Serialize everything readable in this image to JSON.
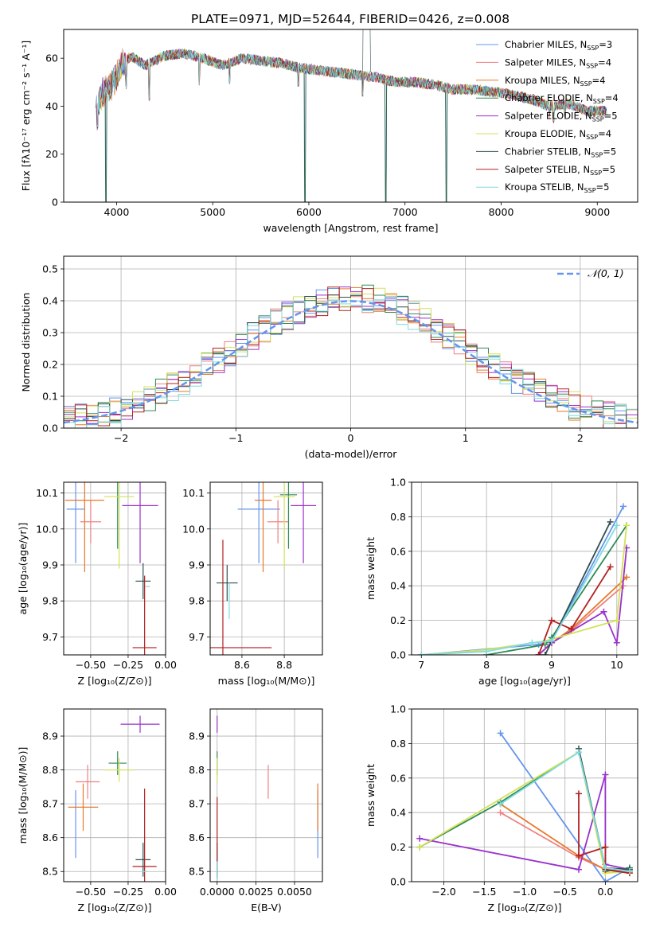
{
  "figure": {
    "title": "PLATE=0971, MJD=52644, FIBERID=0426, z=0.008"
  },
  "legend_entries": [
    {
      "base": "Chabrier MILES, N",
      "sub": "SSP",
      "tail": "=3",
      "color": "#6495ed"
    },
    {
      "base": "Salpeter MILES, N",
      "sub": "SSP",
      "tail": "=4",
      "color": "#f08080"
    },
    {
      "base": "Kroupa MILES, N",
      "sub": "SSP",
      "tail": "=4",
      "color": "#e8782a"
    },
    {
      "base": "Chabrier ELODIE, N",
      "sub": "SSP",
      "tail": "=4",
      "color": "#2e8b57"
    },
    {
      "base": "Salpeter ELODIE, N",
      "sub": "SSP",
      "tail": "=5",
      "color": "#9932cc"
    },
    {
      "base": "Kroupa ELODIE, N",
      "sub": "SSP",
      "tail": "=4",
      "color": "#d4e157"
    },
    {
      "base": "Chabrier STELIB, N",
      "sub": "SSP",
      "tail": "=5",
      "color": "#2f4f4f"
    },
    {
      "base": "Salpeter STELIB, N",
      "sub": "SSP",
      "tail": "=5",
      "color": "#b22222"
    },
    {
      "base": "Kroupa STELIB, N",
      "sub": "SSP",
      "tail": "=5",
      "color": "#7fdbe0"
    }
  ],
  "chart_data": [
    {
      "id": "spectrum",
      "type": "line",
      "xlabel": "wavelength [Angstrom, rest frame]",
      "ylabel": "Flux [fλ10⁻¹⁷ erg cm⁻² s⁻¹ A⁻¹]",
      "xlim": [
        3450,
        9420
      ],
      "ylim": [
        0,
        72
      ],
      "xticks": [
        4000,
        5000,
        6000,
        7000,
        8000,
        9000
      ],
      "yticks": [
        0,
        20,
        40,
        60
      ],
      "grid": false,
      "legend_placement": "upper right",
      "continuum": {
        "x": [
          3780,
          3850,
          3950,
          4050,
          4150,
          4300,
          4500,
          4700,
          4900,
          5100,
          5300,
          5500,
          5700,
          5900,
          6100,
          6300,
          6500,
          6700,
          6900,
          7100,
          7300,
          7500,
          7700,
          7900,
          8100,
          8300,
          8500,
          8700,
          8900,
          9100
        ],
        "y": [
          40,
          45,
          49,
          57,
          61,
          57,
          61,
          62,
          60,
          57,
          60,
          59,
          58,
          56,
          55,
          54,
          53,
          52,
          50,
          50,
          49,
          47,
          47,
          46,
          45,
          43,
          40,
          41,
          38,
          38
        ]
      },
      "dips": [
        [
          3800,
          30
        ],
        [
          3890,
          0
        ],
        [
          4100,
          47
        ],
        [
          4340,
          42
        ],
        [
          4860,
          48
        ],
        [
          5175,
          49
        ],
        [
          5890,
          48
        ],
        [
          5960,
          0
        ],
        [
          6560,
          44
        ],
        [
          6800,
          0
        ],
        [
          7430,
          0
        ],
        [
          8500,
          35
        ],
        [
          8545,
          33
        ],
        [
          8665,
          35
        ]
      ],
      "spike": {
        "x": 6600,
        "y": 72
      }
    },
    {
      "id": "residual_histogram",
      "type": "histogram",
      "xlabel": "(data-model)/error",
      "ylabel": "Normed distribution",
      "xlim": [
        -2.5,
        2.5
      ],
      "ylim": [
        0,
        0.54
      ],
      "xticks": [
        -2,
        -1,
        0,
        1,
        2
      ],
      "yticks": [
        0.0,
        0.1,
        0.2,
        0.3,
        0.4,
        0.5
      ],
      "grid": true,
      "legend": "𝒩(0, 1)",
      "legend_placement": "upper right",
      "bin_width": 0.1,
      "reference_curve": {
        "name": "𝒩(0, 1)",
        "mean": 0,
        "sigma": 1,
        "color": "#6495ed"
      }
    },
    {
      "id": "age_vs_Z",
      "type": "errorbar",
      "xlabel": "Z [log₁₀(Z/Z⊙)]",
      "ylabel": "age  [log₁₀(age/yr)]",
      "xlim": [
        -0.68,
        0.0
      ],
      "ylim": [
        9.65,
        10.13
      ],
      "xticks": [
        -0.5,
        -0.25,
        0.0
      ],
      "xticklabels": [
        "−0.50",
        "−0.25",
        "0.00"
      ],
      "yticks": [
        9.7,
        9.8,
        9.9,
        10.0,
        10.1
      ],
      "grid": true,
      "points": [
        {
          "x": -0.6,
          "xerr": 0.06,
          "y": 10.055,
          "yerr": 0.15,
          "color": "#6495ed"
        },
        {
          "x": -0.5,
          "xerr": 0.07,
          "y": 10.02,
          "yerr": 0.06,
          "color": "#f08080"
        },
        {
          "x": -0.54,
          "xerr": 0.13,
          "y": 10.08,
          "yerr": 0.2,
          "color": "#e8782a"
        },
        {
          "x": -0.32,
          "xerr": 0.0,
          "y": 10.095,
          "yerr": 0.15,
          "color": "#2e8b57"
        },
        {
          "x": -0.17,
          "xerr": 0.12,
          "y": 10.065,
          "yerr": 0.16,
          "color": "#9932cc"
        },
        {
          "x": -0.31,
          "xerr": 0.1,
          "y": 10.09,
          "yerr": 0.2,
          "color": "#d4e157"
        },
        {
          "x": -0.15,
          "xerr": 0.05,
          "y": 9.855,
          "yerr": 0.05,
          "color": "#2f4f4f"
        },
        {
          "x": -0.14,
          "xerr": 0.08,
          "y": 9.67,
          "yerr": 0.2,
          "color": "#b22222"
        },
        {
          "x": -0.12,
          "xerr": 0.0,
          "y": 9.84,
          "yerr": 0.0,
          "color": "#7fdbe0"
        }
      ]
    },
    {
      "id": "age_vs_mass",
      "type": "errorbar",
      "xlabel": "mass [log₁₀(M/M⊙)]",
      "ylabel": "",
      "xlim": [
        8.45,
        8.98
      ],
      "ylim": [
        9.65,
        10.13
      ],
      "xticks": [
        8.6,
        8.8
      ],
      "yticks": [
        9.7,
        9.8,
        9.9,
        10.0,
        10.1
      ],
      "grid": true,
      "points": [
        {
          "x": 8.68,
          "xerr": 0.1,
          "y": 10.055,
          "yerr": 0.15,
          "color": "#6495ed"
        },
        {
          "x": 8.77,
          "xerr": 0.05,
          "y": 10.02,
          "yerr": 0.06,
          "color": "#f08080"
        },
        {
          "x": 8.7,
          "xerr": 0.04,
          "y": 10.08,
          "yerr": 0.2,
          "color": "#e8782a"
        },
        {
          "x": 8.82,
          "xerr": 0.04,
          "y": 10.095,
          "yerr": 0.15,
          "color": "#2e8b57"
        },
        {
          "x": 8.89,
          "xerr": 0.06,
          "y": 10.065,
          "yerr": 0.16,
          "color": "#9932cc"
        },
        {
          "x": 8.8,
          "xerr": 0.05,
          "y": 10.09,
          "yerr": 0.2,
          "color": "#d4e157"
        },
        {
          "x": 8.53,
          "xerr": 0.05,
          "y": 9.85,
          "yerr": 0.05,
          "color": "#2f4f4f"
        },
        {
          "x": 8.51,
          "xerr": 0.23,
          "y": 9.67,
          "yerr": 0.3,
          "color": "#b22222"
        },
        {
          "x": 8.54,
          "xerr": 0.0,
          "y": 9.8,
          "yerr": 0.05,
          "color": "#7fdbe0"
        }
      ]
    },
    {
      "id": "massweight_vs_age",
      "type": "line",
      "xlabel": "age  [log₁₀(age/yr)]",
      "ylabel": "mass weight",
      "xlim": [
        6.85,
        10.32
      ],
      "ylim": [
        0,
        1.0
      ],
      "xticks": [
        7,
        8,
        9,
        10
      ],
      "yticks": [
        0.0,
        0.2,
        0.4,
        0.6,
        0.8,
        1.0
      ],
      "grid": true,
      "series": [
        {
          "color": "#6495ed",
          "x": [
            7.0,
            8.8,
            9.0,
            10.1
          ],
          "y": [
            0.0,
            0.06,
            0.08,
            0.86
          ]
        },
        {
          "color": "#f08080",
          "x": [
            8.8,
            9.0,
            9.3,
            10.1
          ],
          "y": [
            0.0,
            0.07,
            0.14,
            0.4
          ]
        },
        {
          "color": "#e8782a",
          "x": [
            8.8,
            9.0,
            9.3,
            10.15
          ],
          "y": [
            0.0,
            0.07,
            0.15,
            0.45
          ]
        },
        {
          "color": "#2e8b57",
          "x": [
            8.0,
            8.9,
            9.0,
            10.15
          ],
          "y": [
            0.0,
            0.06,
            0.1,
            0.75
          ]
        },
        {
          "color": "#9932cc",
          "x": [
            8.8,
            9.0,
            9.8,
            10.0,
            10.15
          ],
          "y": [
            0.0,
            0.07,
            0.25,
            0.07,
            0.62
          ]
        },
        {
          "color": "#d4e157",
          "x": [
            7.0,
            8.0,
            8.9,
            10.0,
            10.15
          ],
          "y": [
            0.0,
            0.03,
            0.08,
            0.2,
            0.75
          ]
        },
        {
          "color": "#2f4f4f",
          "x": [
            8.9,
            9.0,
            9.9
          ],
          "y": [
            0.0,
            0.08,
            0.77
          ]
        },
        {
          "color": "#b22222",
          "x": [
            8.8,
            9.0,
            9.3,
            9.9
          ],
          "y": [
            0.0,
            0.2,
            0.15,
            0.51
          ]
        },
        {
          "color": "#7fdbe0",
          "x": [
            7.0,
            8.0,
            8.7,
            9.0,
            10.0
          ],
          "y": [
            0.0,
            0.02,
            0.07,
            0.08,
            0.75
          ]
        }
      ]
    },
    {
      "id": "mass_vs_Z",
      "type": "errorbar",
      "xlabel": "Z [log₁₀(Z/Z⊙)]",
      "ylabel": "mass [log₁₀(M/M⊙)]",
      "xlim": [
        -0.68,
        0.0
      ],
      "ylim": [
        8.47,
        8.98
      ],
      "xticks": [
        -0.5,
        -0.25,
        0.0
      ],
      "xticklabels": [
        "−0.50",
        "−0.25",
        "0.00"
      ],
      "yticks": [
        8.5,
        8.6,
        8.7,
        8.8,
        8.9
      ],
      "grid": true,
      "points": [
        {
          "x": -0.6,
          "xerr": 0.0,
          "y": 8.64,
          "yerr": 0.1,
          "color": "#6495ed"
        },
        {
          "x": -0.52,
          "xerr": 0.08,
          "y": 8.765,
          "yerr": 0.05,
          "color": "#f08080"
        },
        {
          "x": -0.55,
          "xerr": 0.1,
          "y": 8.69,
          "yerr": 0.07,
          "color": "#e8782a"
        },
        {
          "x": -0.32,
          "xerr": 0.06,
          "y": 8.82,
          "yerr": 0.035,
          "color": "#2e8b57"
        },
        {
          "x": -0.17,
          "xerr": 0.13,
          "y": 8.935,
          "yerr": 0.025,
          "color": "#9932cc"
        },
        {
          "x": -0.31,
          "xerr": 0.1,
          "y": 8.8,
          "yerr": 0.035,
          "color": "#d4e157"
        },
        {
          "x": -0.15,
          "xerr": 0.05,
          "y": 8.535,
          "yerr": 0.05,
          "color": "#2f4f4f"
        },
        {
          "x": -0.14,
          "xerr": 0.08,
          "y": 8.515,
          "yerr": 0.23,
          "color": "#b22222"
        },
        {
          "x": -0.14,
          "xerr": 0.0,
          "y": 8.5,
          "yerr": 0.0,
          "color": "#7fdbe0"
        }
      ]
    },
    {
      "id": "mass_vs_ebv",
      "type": "errorbar",
      "xlabel": "E(B-V)",
      "ylabel": "",
      "xlim": [
        -0.00045,
        0.0068
      ],
      "ylim": [
        8.47,
        8.98
      ],
      "xticks": [
        0.0,
        0.0025,
        0.005
      ],
      "xticklabels": [
        "0.0000",
        "0.0025",
        "0.0050"
      ],
      "yticks": [
        8.5,
        8.6,
        8.7,
        8.8,
        8.9
      ],
      "grid": true,
      "points": [
        {
          "x": 0.0065,
          "xerr": 0.0,
          "y": 8.64,
          "yerr": 0.1,
          "color": "#6495ed"
        },
        {
          "x": 0.0033,
          "xerr": 0.0,
          "y": 8.765,
          "yerr": 0.05,
          "color": "#f08080"
        },
        {
          "x": 0.0065,
          "xerr": 0.0,
          "y": 8.69,
          "yerr": 0.07,
          "color": "#e8782a"
        },
        {
          "x": 0.0,
          "xerr": 0.0,
          "y": 8.82,
          "yerr": 0.035,
          "color": "#2e8b57"
        },
        {
          "x": 0.0,
          "xerr": 0.0,
          "y": 8.935,
          "yerr": 0.025,
          "color": "#9932cc"
        },
        {
          "x": 0.0,
          "xerr": 0.0,
          "y": 8.8,
          "yerr": 0.035,
          "color": "#d4e157"
        },
        {
          "x": 0.0,
          "xerr": 0.0,
          "y": 8.535,
          "yerr": 0.05,
          "color": "#2f4f4f"
        },
        {
          "x": 0.0,
          "xerr": 0.0,
          "y": 8.6,
          "yerr": 0.12,
          "color": "#b22222"
        },
        {
          "x": 0.0,
          "xerr": 0.0,
          "y": 8.5,
          "yerr": 0.03,
          "color": "#7fdbe0"
        }
      ]
    },
    {
      "id": "massweight_vs_Z",
      "type": "line",
      "xlabel": "Z [log₁₀(Z/Z⊙)]",
      "ylabel": "mass weight",
      "xlim": [
        -2.4,
        0.4
      ],
      "ylim": [
        0,
        1.0
      ],
      "xticks": [
        -2.0,
        -1.5,
        -1.0,
        -0.5,
        0.0
      ],
      "xticklabels": [
        "−2.0",
        "−1.5",
        "−1.0",
        "−0.5",
        "0.0"
      ],
      "yticks": [
        0.0,
        0.2,
        0.4,
        0.6,
        0.8,
        1.0
      ],
      "grid": true,
      "series": [
        {
          "color": "#6495ed",
          "x": [
            -1.3,
            0.0,
            0.3
          ],
          "y": [
            0.86,
            0.0,
            0.08
          ]
        },
        {
          "color": "#f08080",
          "x": [
            -1.3,
            -0.33,
            0.0,
            0.3
          ],
          "y": [
            0.4,
            0.14,
            0.07,
            0.06
          ]
        },
        {
          "color": "#e8782a",
          "x": [
            -1.3,
            -0.33,
            0.0,
            0.3
          ],
          "y": [
            0.45,
            0.15,
            0.07,
            0.05
          ]
        },
        {
          "color": "#2e8b57",
          "x": [
            -2.3,
            -1.3,
            -0.33,
            0.0,
            0.3
          ],
          "y": [
            0.2,
            0.46,
            0.75,
            0.06,
            0.08
          ]
        },
        {
          "color": "#9932cc",
          "x": [
            -2.3,
            -0.33,
            0.0,
            0.0,
            0.3
          ],
          "y": [
            0.25,
            0.07,
            0.62,
            0.1,
            0.07
          ]
        },
        {
          "color": "#d4e157",
          "x": [
            -2.3,
            -0.33,
            0.0,
            0.3
          ],
          "y": [
            0.2,
            0.75,
            0.05,
            0.06
          ]
        },
        {
          "color": "#2f4f4f",
          "x": [
            -0.33,
            0.0,
            0.3
          ],
          "y": [
            0.77,
            0.08,
            0.07
          ]
        },
        {
          "color": "#b22222",
          "x": [
            -0.33,
            -0.33,
            0.0,
            0.0,
            0.3
          ],
          "y": [
            0.51,
            0.15,
            0.2,
            0.07,
            0.05
          ]
        },
        {
          "color": "#7fdbe0",
          "x": [
            -1.3,
            -0.33,
            0.0,
            0.3
          ],
          "y": [
            0.45,
            0.75,
            0.08,
            0.06
          ]
        }
      ]
    }
  ]
}
